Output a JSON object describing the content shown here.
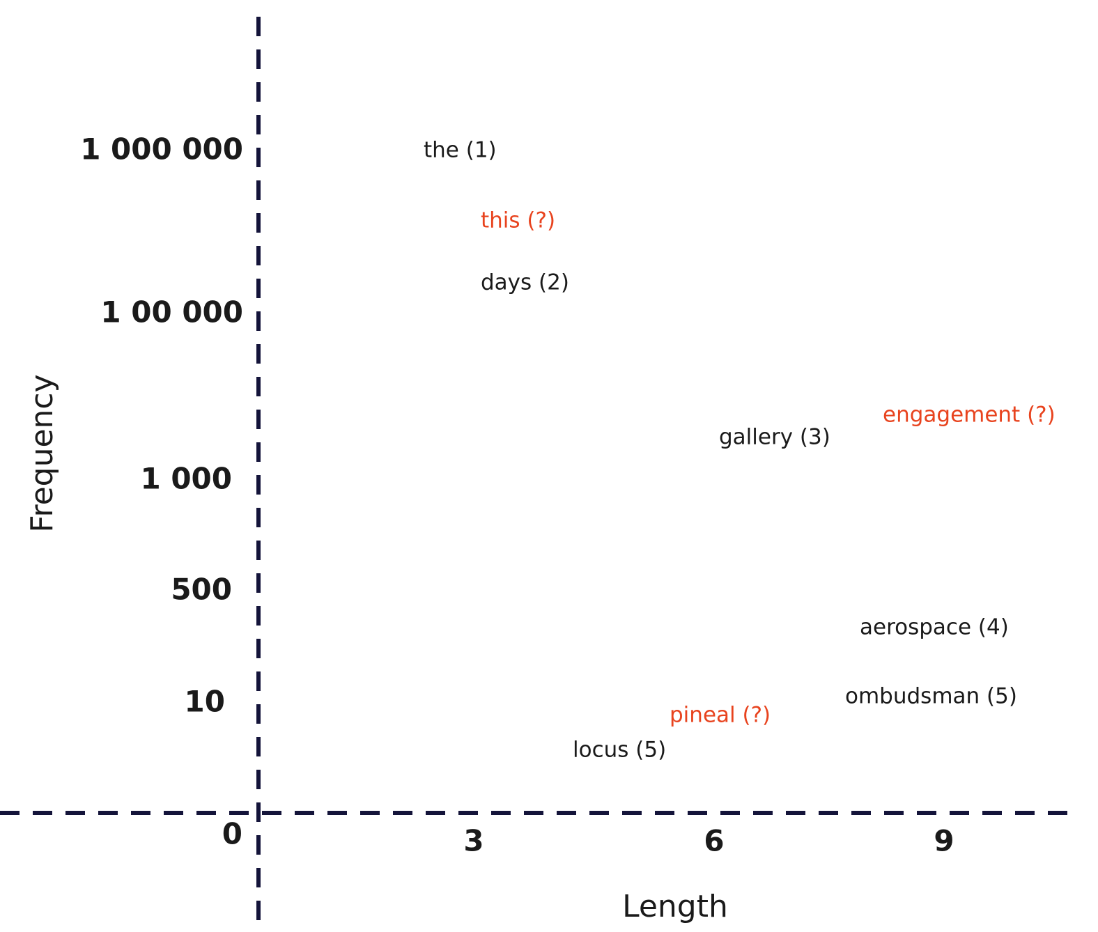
{
  "y_axis": {
    "title": "Frequency",
    "ticks": [
      "1 000 000",
      "1 00 000",
      "1 000",
      "500",
      "10",
      "0"
    ]
  },
  "x_axis": {
    "title": "Length",
    "ticks": [
      "3",
      "6",
      "9"
    ]
  },
  "words": [
    {
      "label": "the (1)",
      "color": "#1a1a1a"
    },
    {
      "label": "this (?)",
      "color": "#e8431e"
    },
    {
      "label": "days (2)",
      "color": "#1a1a1a"
    },
    {
      "label": "gallery (3)",
      "color": "#1a1a1a"
    },
    {
      "label": "engagement (?)",
      "color": "#e8431e"
    },
    {
      "label": "aerospace (4)",
      "color": "#1a1a1a"
    },
    {
      "label": "ombudsman (5)",
      "color": "#1a1a1a"
    },
    {
      "label": "pineal (?)",
      "color": "#e8431e"
    },
    {
      "label": "locus (5)",
      "color": "#1a1a1a"
    }
  ]
}
